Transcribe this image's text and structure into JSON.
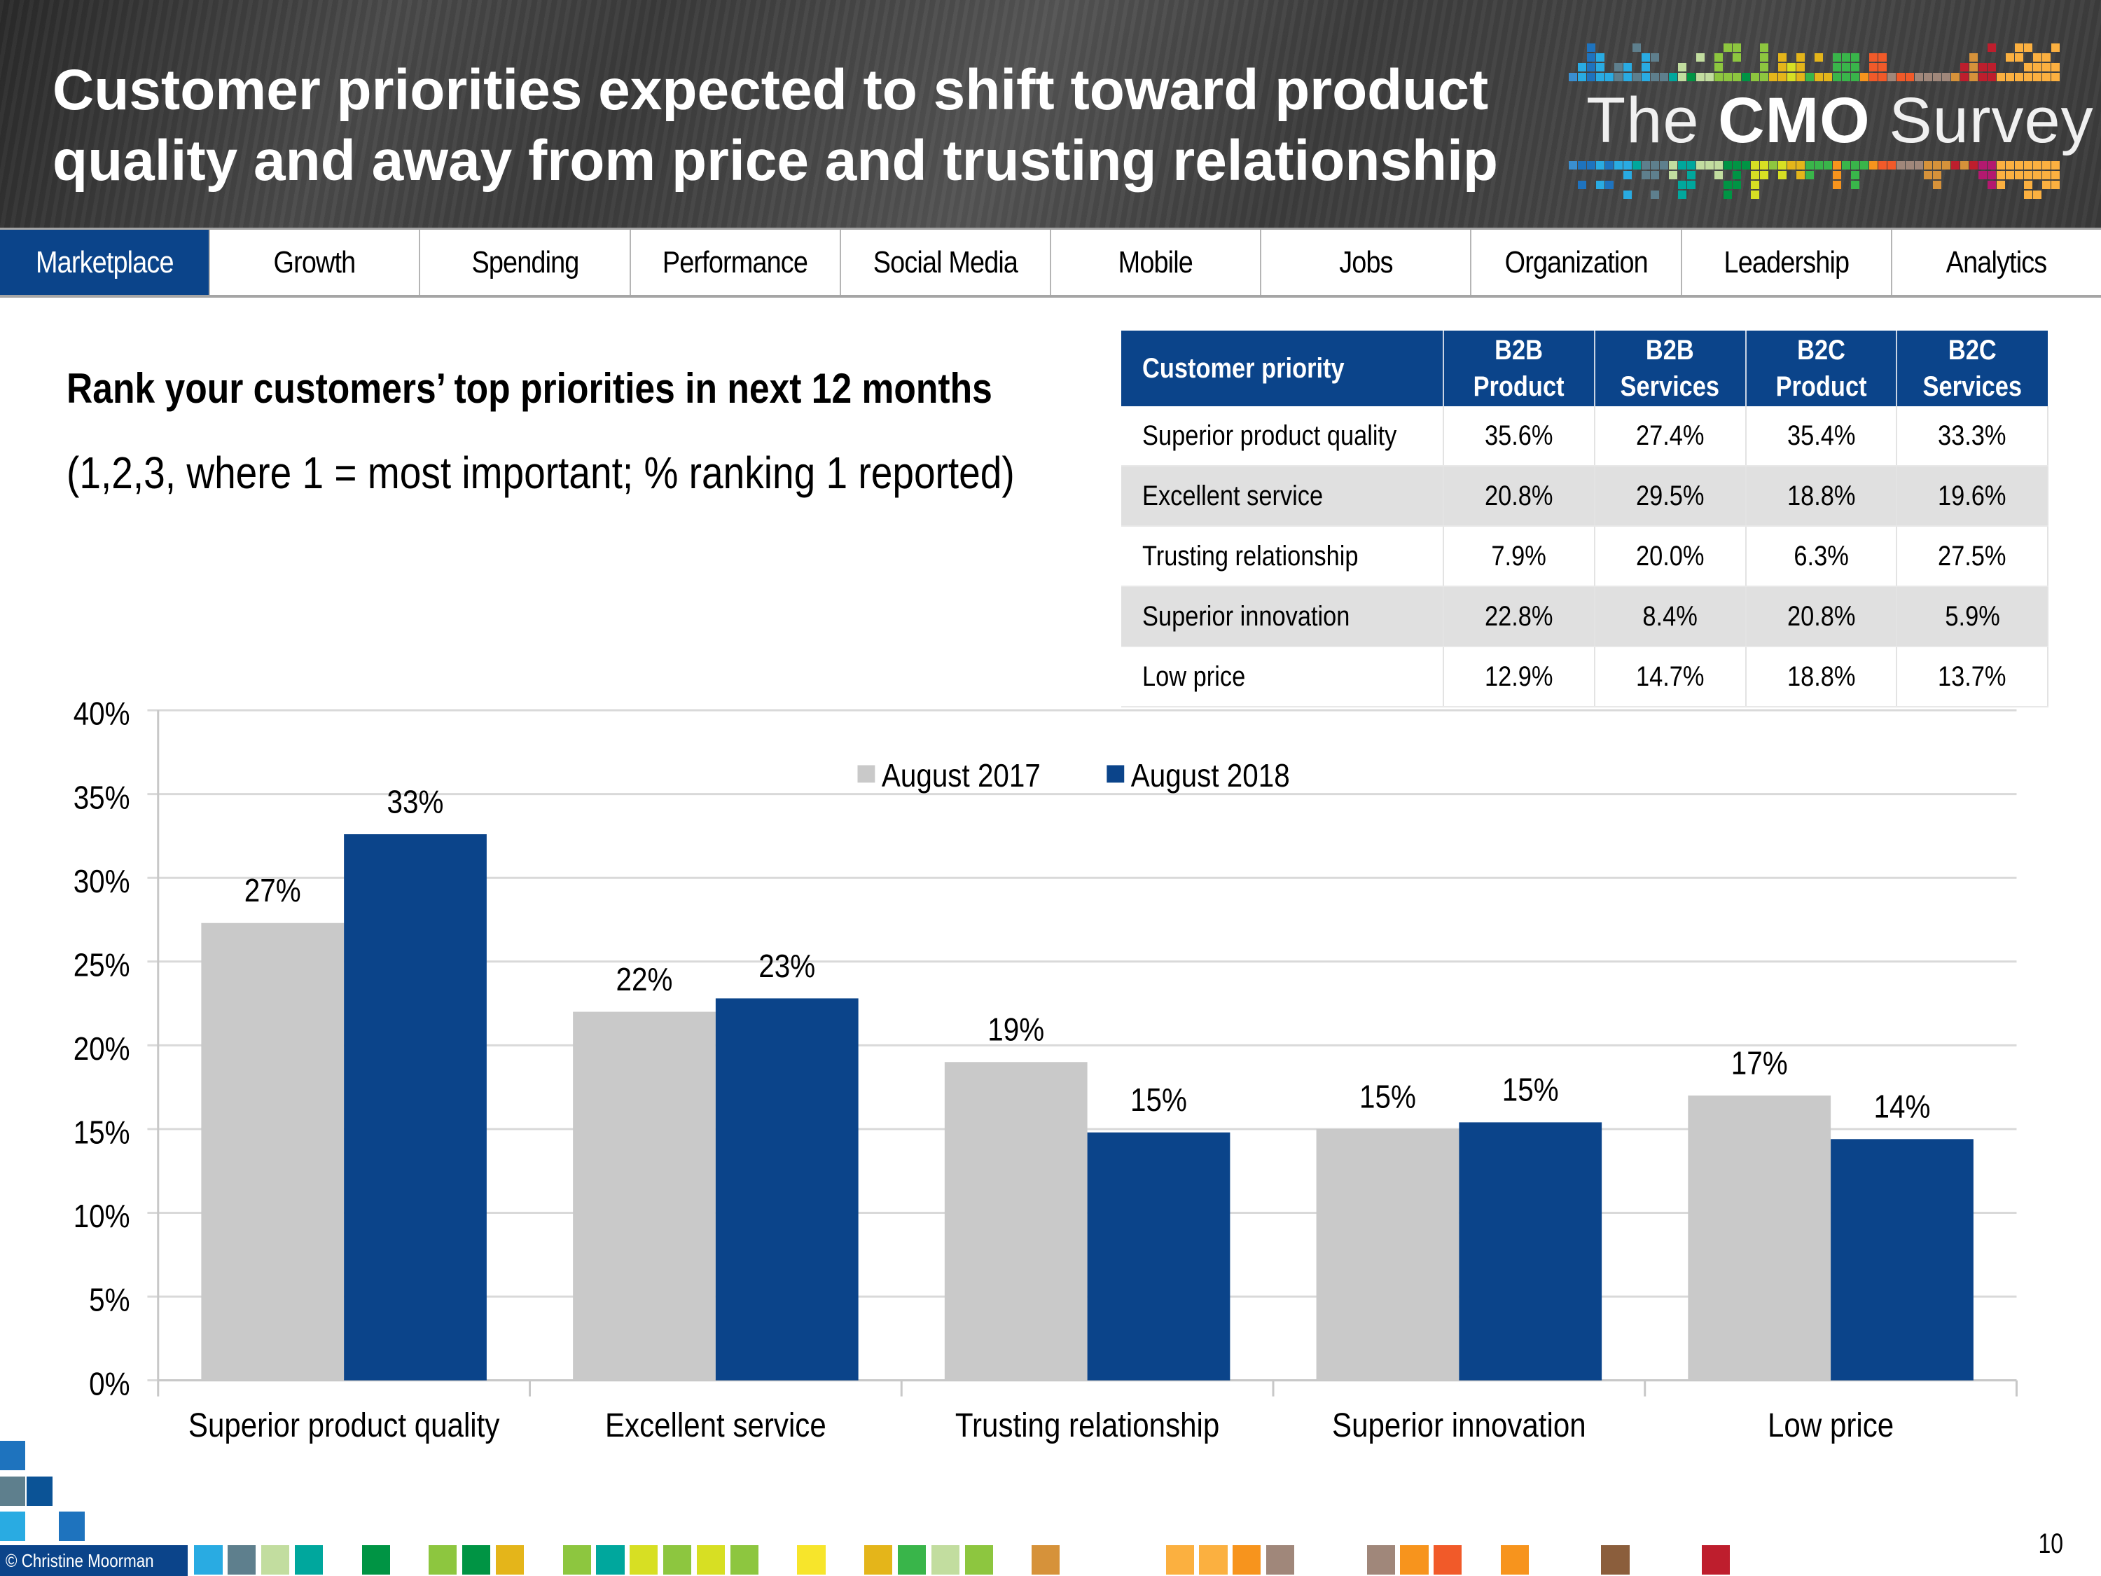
{
  "header": {
    "title_line1": "Customer priorities expected to shift toward product",
    "title_line2": "quality and away from price and trusting relationship",
    "logo": {
      "prefix": "The",
      "emphasis": "CMO",
      "suffix": "Survey"
    }
  },
  "nav": {
    "items": [
      {
        "label": "Marketplace",
        "active": true
      },
      {
        "label": "Growth",
        "active": false
      },
      {
        "label": "Spending",
        "active": false
      },
      {
        "label": "Performance",
        "active": false
      },
      {
        "label": "Social Media",
        "active": false
      },
      {
        "label": "Mobile",
        "active": false
      },
      {
        "label": "Jobs",
        "active": false
      },
      {
        "label": "Organization",
        "active": false
      },
      {
        "label": "Leadership",
        "active": false
      },
      {
        "label": "Analytics",
        "active": false
      }
    ]
  },
  "question": {
    "title": "Rank your customers’ top priorities in next 12 months",
    "note": "(1,2,3, where 1 = most important; % ranking 1 reported)"
  },
  "table": {
    "headers": [
      {
        "line1": "Customer priority",
        "line2": ""
      },
      {
        "line1": "B2B",
        "line2": "Product"
      },
      {
        "line1": "B2B",
        "line2": "Services"
      },
      {
        "line1": "B2C",
        "line2": "Product"
      },
      {
        "line1": "B2C",
        "line2": "Services"
      }
    ],
    "rows": [
      {
        "label": "Superior product quality",
        "values": [
          "35.6%",
          "27.4%",
          "35.4%",
          "33.3%"
        ]
      },
      {
        "label": "Excellent service",
        "values": [
          "20.8%",
          "29.5%",
          "18.8%",
          "19.6%"
        ]
      },
      {
        "label": "Trusting relationship",
        "values": [
          "7.9%",
          "20.0%",
          "6.3%",
          "27.5%"
        ]
      },
      {
        "label": "Superior innovation",
        "values": [
          "22.8%",
          "8.4%",
          "20.8%",
          "5.9%"
        ]
      },
      {
        "label": "Low price",
        "values": [
          "12.9%",
          "14.7%",
          "18.8%",
          "13.7%"
        ]
      }
    ]
  },
  "chart_data": {
    "type": "bar",
    "title": "",
    "xlabel": "",
    "ylabel": "",
    "categories": [
      "Superior product quality",
      "Excellent service",
      "Trusting relationship",
      "Superior innovation",
      "Low price"
    ],
    "series": [
      {
        "name": "August 2017",
        "color": "#c9c9c9",
        "values": [
          27.3,
          22.0,
          19.0,
          15.0,
          17.0
        ],
        "labels": [
          "27%",
          "22%",
          "19%",
          "15%",
          "17%"
        ]
      },
      {
        "name": "August 2018",
        "color": "#0b448a",
        "values": [
          32.6,
          22.8,
          14.8,
          15.4,
          14.4
        ],
        "labels": [
          "33%",
          "23%",
          "15%",
          "15%",
          "14%"
        ]
      }
    ],
    "ylim": [
      0,
      40
    ],
    "yticks": [
      0,
      5,
      10,
      15,
      20,
      25,
      30,
      35,
      40
    ],
    "ytick_labels": [
      "0%",
      "5%",
      "10%",
      "15%",
      "20%",
      "25%",
      "30%",
      "35%",
      "40%"
    ],
    "grid": true,
    "legend_position": "top-center"
  },
  "footer": {
    "copyright": "© Christine Moorman",
    "page_number": "10"
  },
  "colors": {
    "brand_blue": "#0b448a",
    "series_2017": "#c9c9c9",
    "series_2018": "#0b448a",
    "table_shade": "#e0e0e0"
  }
}
